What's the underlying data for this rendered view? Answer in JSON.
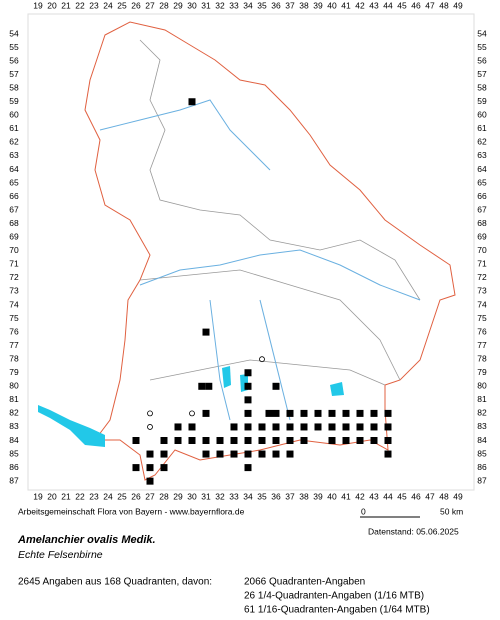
{
  "map": {
    "x_labels": [
      19,
      20,
      21,
      22,
      23,
      24,
      25,
      26,
      27,
      28,
      29,
      30,
      31,
      32,
      33,
      34,
      35,
      36,
      37,
      38,
      39,
      40,
      41,
      42,
      43,
      44,
      45,
      46,
      47,
      48,
      49
    ],
    "y_labels": [
      54,
      55,
      56,
      57,
      58,
      59,
      60,
      61,
      62,
      63,
      64,
      65,
      66,
      67,
      68,
      69,
      70,
      71,
      72,
      73,
      74,
      75,
      76,
      77,
      78,
      79,
      80,
      81,
      82,
      83,
      84,
      85,
      86,
      87
    ],
    "filled": [
      [
        30,
        59
      ],
      [
        31,
        76
      ],
      [
        34,
        79
      ],
      [
        30.7,
        80
      ],
      [
        31.2,
        80
      ],
      [
        34,
        80
      ],
      [
        36,
        80
      ],
      [
        34,
        81
      ],
      [
        31,
        82
      ],
      [
        34,
        82
      ],
      [
        35.5,
        82
      ],
      [
        36,
        82
      ],
      [
        37,
        82
      ],
      [
        38,
        82
      ],
      [
        39,
        82
      ],
      [
        40,
        82
      ],
      [
        41,
        82
      ],
      [
        42,
        82
      ],
      [
        43,
        82
      ],
      [
        44,
        82
      ],
      [
        29,
        83
      ],
      [
        30,
        83
      ],
      [
        33,
        83
      ],
      [
        34,
        83
      ],
      [
        35,
        83
      ],
      [
        36,
        83
      ],
      [
        37,
        83
      ],
      [
        38,
        83
      ],
      [
        39,
        83
      ],
      [
        40,
        83
      ],
      [
        41,
        83
      ],
      [
        42,
        83
      ],
      [
        43,
        83
      ],
      [
        44,
        83
      ],
      [
        26,
        84
      ],
      [
        28,
        84
      ],
      [
        29,
        84
      ],
      [
        30,
        84
      ],
      [
        31,
        84
      ],
      [
        32,
        84
      ],
      [
        33,
        84
      ],
      [
        34,
        84
      ],
      [
        35,
        84
      ],
      [
        36,
        84
      ],
      [
        37,
        84
      ],
      [
        38,
        84
      ],
      [
        40,
        84
      ],
      [
        41,
        84
      ],
      [
        42,
        84
      ],
      [
        43,
        84
      ],
      [
        44,
        84
      ],
      [
        27,
        85
      ],
      [
        28,
        85
      ],
      [
        31,
        85
      ],
      [
        32,
        85
      ],
      [
        33,
        85
      ],
      [
        34,
        85
      ],
      [
        35,
        85
      ],
      [
        36,
        85
      ],
      [
        37,
        85
      ],
      [
        44,
        85
      ],
      [
        26,
        86
      ],
      [
        27,
        86
      ],
      [
        28,
        86
      ],
      [
        34,
        86
      ],
      [
        27,
        87
      ]
    ],
    "open": [
      [
        27,
        82
      ],
      [
        27,
        83
      ],
      [
        30,
        82
      ],
      [
        35,
        78
      ]
    ]
  },
  "credit": "Arbeitsgemeinschaft Flora von Bayern - www.bayernflora.de",
  "scale": {
    "start": "0",
    "end": "50 km"
  },
  "date": "Datenstand: 05.06.2025",
  "title": "Amelanchier ovalis Medik.",
  "subtitle": "Echte Felsenbirne",
  "summary": "2645 Angaben aus 168 Quadranten, davon:",
  "details": [
    "2066 Quadranten-Angaben",
    "26 1/4-Quadranten-Angaben (1/16 MTB)",
    "61 1/16-Quadranten-Angaben (1/64 MTB)"
  ]
}
